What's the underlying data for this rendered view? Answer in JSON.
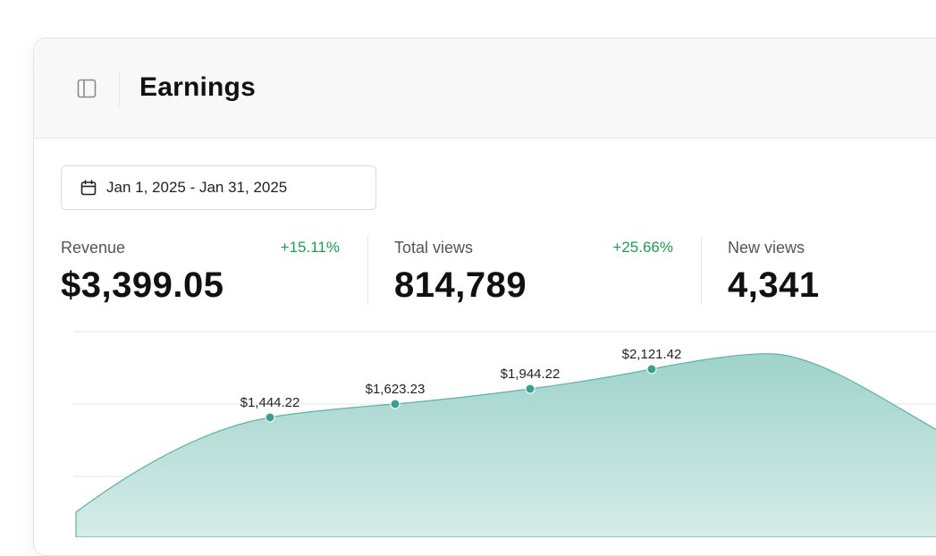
{
  "header": {
    "title": "Earnings",
    "toggle_icon": "sidebar-panel-icon"
  },
  "date_range": {
    "label": "Jan 1, 2025 - Jan 31, 2025",
    "icon": "calendar-icon"
  },
  "stats": [
    {
      "label": "Revenue",
      "change": "+15.11%",
      "value": "$3,399.05"
    },
    {
      "label": "Total views",
      "change": "+25.66%",
      "value": "814,789"
    },
    {
      "label": "New views",
      "change": "",
      "value": "4,341"
    }
  ],
  "colors": {
    "accent": "#3a9e92",
    "area_fill": "#a6d6cf",
    "positive": "#1a9f4c"
  },
  "chart_data": {
    "type": "area",
    "series": [
      {
        "points": [
          {
            "label": "$1,444.22",
            "value": 1444.22
          },
          {
            "label": "$1,623.23",
            "value": 1623.23
          },
          {
            "label": "$1,944.22",
            "value": 1944.22
          },
          {
            "label": "$2,121.42",
            "value": 2121.42
          }
        ]
      }
    ],
    "grid": true,
    "legend": "none"
  }
}
